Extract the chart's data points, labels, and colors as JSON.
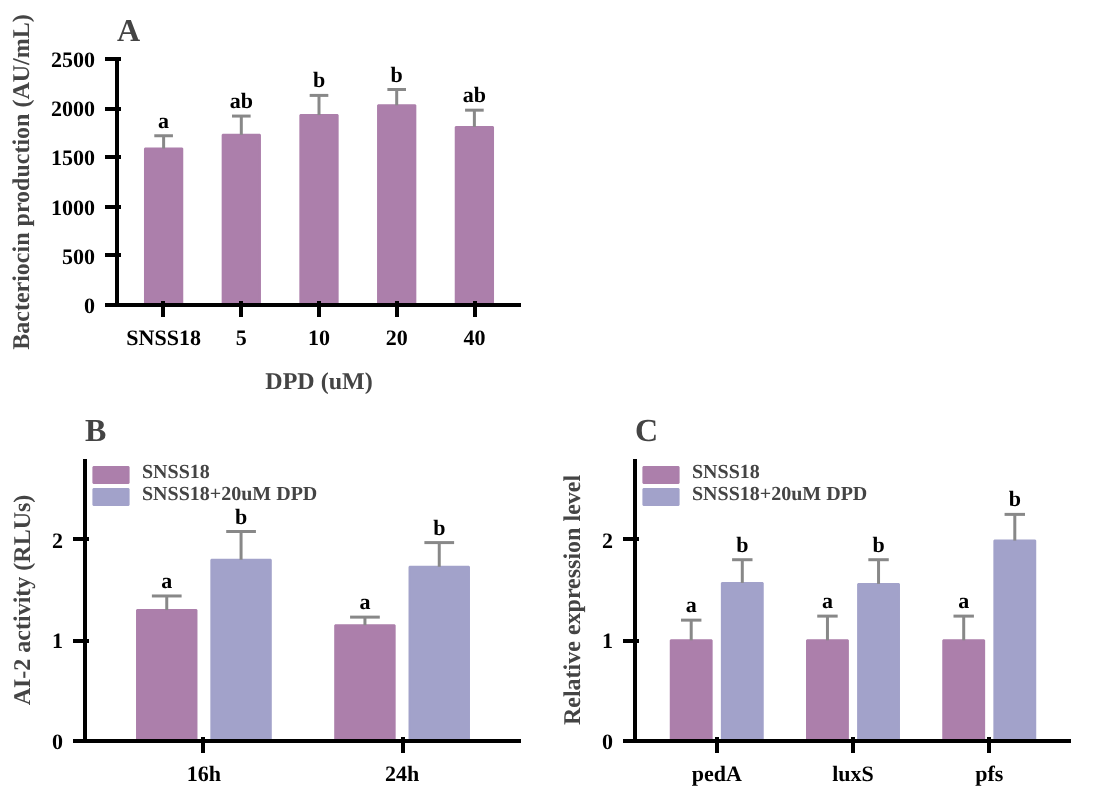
{
  "chart_data": [
    {
      "type": "bar",
      "title": "A",
      "xlabel": "DPD (uM)",
      "ylabel": "Bacteriocin production (AU/mL)",
      "categories": [
        "SNSS18",
        "5",
        "10",
        "20",
        "40"
      ],
      "series": [
        {
          "color": "#ac7fab",
          "values": [
            1590,
            1730,
            1930,
            2030,
            1810
          ],
          "errors": [
            130,
            190,
            200,
            160,
            170
          ],
          "value_labels": [
            "a",
            "ab",
            "b",
            "b",
            "ab"
          ]
        }
      ],
      "ylim": [
        0,
        2500
      ],
      "yticks": [
        0,
        500,
        1000,
        1500,
        2000,
        2500
      ],
      "grid": false,
      "legend": false
    },
    {
      "type": "bar",
      "title": "B",
      "ylabel": "AI-2 activity (RLUs)",
      "categories": [
        "16h",
        "24h"
      ],
      "series": [
        {
          "name": "SNSS18",
          "color": "#ac7fab",
          "values": [
            1.3,
            1.15
          ],
          "errors": [
            0.14,
            0.08
          ],
          "value_labels": [
            "a",
            "a"
          ]
        },
        {
          "name": "SNSS18+20uM DPD",
          "color": "#a2a2ca",
          "values": [
            1.8,
            1.73
          ],
          "errors": [
            0.28,
            0.24
          ],
          "value_labels": [
            "b",
            "b"
          ]
        }
      ],
      "ylim": [
        0,
        2.8
      ],
      "yticks": [
        0,
        1,
        2
      ],
      "grid": false,
      "legend": "top left"
    },
    {
      "type": "bar",
      "title": "C",
      "ylabel": "Relative expression level",
      "categories": [
        "pedA",
        "luxS",
        "pfs"
      ],
      "series": [
        {
          "name": "SNSS18",
          "color": "#ac7fab",
          "values": [
            1.0,
            1.0,
            1.0
          ],
          "errors": [
            0.2,
            0.24,
            0.24
          ],
          "value_labels": [
            "a",
            "a",
            "a"
          ]
        },
        {
          "name": "SNSS18+20uM DPD",
          "color": "#a2a2ca",
          "values": [
            1.57,
            1.56,
            1.99
          ],
          "errors": [
            0.23,
            0.24,
            0.26
          ],
          "value_labels": [
            "b",
            "b",
            "b"
          ]
        }
      ],
      "ylim": [
        0,
        2.8
      ],
      "yticks": [
        0,
        1,
        2
      ],
      "grid": false,
      "legend": "top left"
    }
  ]
}
